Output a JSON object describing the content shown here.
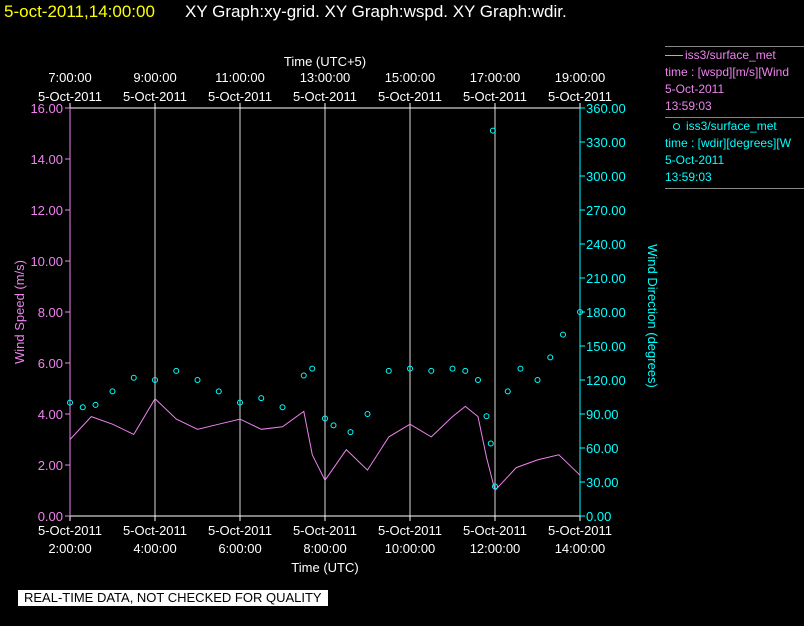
{
  "header": {
    "timestamp": "5-oct-2011,14:00:00",
    "graphs": "XY Graph:xy-grid.  XY Graph:wspd.  XY Graph:wdir."
  },
  "legend": [
    {
      "lines": [
        "iss3/surface_met",
        "time : [wspd][m/s][Wind",
        "5-Oct-2011",
        "13:59:03"
      ],
      "color": "#ee82ee",
      "style": "line"
    },
    {
      "lines": [
        "iss3/surface_met",
        "time : [wdir][degrees][W",
        "5-Oct-2011",
        "13:59:03"
      ],
      "color": "#00ffff",
      "style": "circle"
    }
  ],
  "footer": {
    "quality": "REAL-TIME DATA, NOT CHECKED FOR QUALITY"
  },
  "colors": {
    "background": "#000000",
    "axes": "#ffffff",
    "wspd": "#ee82ee",
    "wdir": "#00ffff",
    "timestamp": "#ffff00"
  },
  "chart_data": {
    "type": "line",
    "top_axis": {
      "label": "Time (UTC+5)",
      "ticks": [
        {
          "t": 2,
          "time": "7:00:00",
          "date": "5-Oct-2011"
        },
        {
          "t": 4,
          "time": "9:00:00",
          "date": "5-Oct-2011"
        },
        {
          "t": 6,
          "time": "11:00:00",
          "date": "5-Oct-2011"
        },
        {
          "t": 8,
          "time": "13:00:00",
          "date": "5-Oct-2011"
        },
        {
          "t": 10,
          "time": "15:00:00",
          "date": "5-Oct-2011"
        },
        {
          "t": 12,
          "time": "17:00:00",
          "date": "5-Oct-2011"
        },
        {
          "t": 14,
          "time": "19:00:00",
          "date": "5-Oct-2011"
        }
      ]
    },
    "bottom_axis": {
      "label": "Time (UTC)",
      "ticks": [
        {
          "t": 2,
          "time": "2:00:00",
          "date": "5-Oct-2011"
        },
        {
          "t": 4,
          "time": "4:00:00",
          "date": "5-Oct-2011"
        },
        {
          "t": 6,
          "time": "6:00:00",
          "date": "5-Oct-2011"
        },
        {
          "t": 8,
          "time": "8:00:00",
          "date": "5-Oct-2011"
        },
        {
          "t": 10,
          "time": "10:00:00",
          "date": "5-Oct-2011"
        },
        {
          "t": 12,
          "time": "12:00:00",
          "date": "5-Oct-2011"
        },
        {
          "t": 14,
          "time": "14:00:00",
          "date": "5-Oct-2011"
        }
      ]
    },
    "xlim_hours_utc": [
      2.0,
      14.0
    ],
    "left_axis": {
      "label": "Wind Speed (m/s)",
      "ylim": [
        0,
        16
      ],
      "ticks": [
        "0.00",
        "2.00",
        "4.00",
        "6.00",
        "8.00",
        "10.00",
        "12.00",
        "14.00",
        "16.00"
      ]
    },
    "right_axis": {
      "label": "Wind Direction (degrees)",
      "ylim": [
        0,
        360
      ],
      "ticks": [
        "0.00",
        "30.00",
        "60.00",
        "90.00",
        "120.00",
        "150.00",
        "180.00",
        "210.00",
        "240.00",
        "270.00",
        "300.00",
        "330.00",
        "360.00"
      ]
    },
    "grid": "vertical",
    "series": [
      {
        "name": "wspd",
        "style": "line",
        "x": [
          2.0,
          2.5,
          3.0,
          3.5,
          4.0,
          4.5,
          5.0,
          5.5,
          6.0,
          6.5,
          7.0,
          7.5,
          7.7,
          8.0,
          8.5,
          9.0,
          9.5,
          10.0,
          10.5,
          11.0,
          11.3,
          11.6,
          11.8,
          12.0,
          12.5,
          13.0,
          13.5,
          14.0
        ],
        "values": [
          3.0,
          3.9,
          3.6,
          3.2,
          4.6,
          3.8,
          3.4,
          3.6,
          3.8,
          3.4,
          3.5,
          4.1,
          2.4,
          1.4,
          2.6,
          1.8,
          3.1,
          3.6,
          3.1,
          3.9,
          4.3,
          3.9,
          2.3,
          1.0,
          1.9,
          2.2,
          2.4,
          1.6
        ]
      },
      {
        "name": "wdir",
        "style": "circle",
        "x": [
          2.0,
          2.3,
          2.6,
          3.0,
          3.5,
          4.0,
          4.5,
          5.0,
          5.5,
          6.0,
          6.5,
          7.0,
          7.5,
          7.7,
          8.0,
          8.2,
          8.6,
          9.0,
          9.5,
          10.0,
          10.5,
          11.0,
          11.3,
          11.6,
          11.8,
          11.9,
          11.95,
          12.0,
          12.3,
          12.6,
          13.0,
          13.3,
          13.6,
          14.0
        ],
        "values": [
          100,
          96,
          98,
          110,
          122,
          120,
          128,
          120,
          110,
          100,
          104,
          96,
          124,
          130,
          86,
          80,
          74,
          90,
          128,
          130,
          128,
          130,
          128,
          120,
          88,
          64,
          340,
          26,
          110,
          130,
          120,
          140,
          160,
          180
        ]
      }
    ]
  }
}
